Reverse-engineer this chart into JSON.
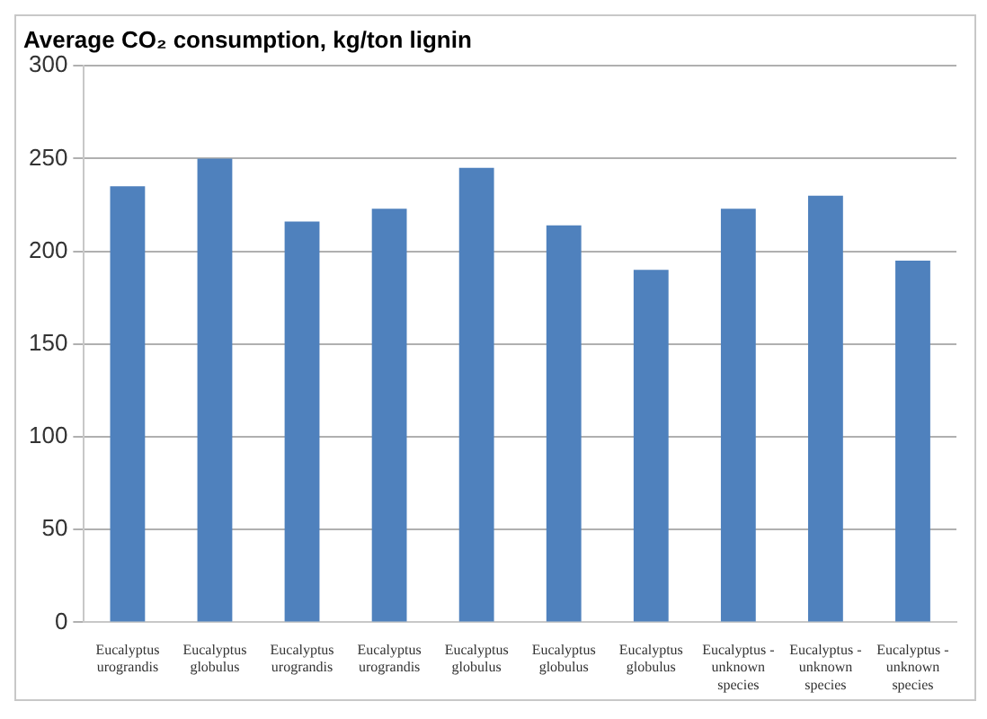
{
  "chart_data": {
    "type": "bar",
    "title": "Average CO₂ consumption, kg/ton lignin",
    "categories": [
      "Eucalyptus urograndis",
      "Eucalyptus globulus",
      "Eucalyptus urograndis",
      "Eucalyptus urograndis",
      "Eucalyptus globulus",
      "Eucalyptus globulus",
      "Eucalyptus globulus",
      "Eucalyptus - unknown species",
      "Eucalyptus - unknown species",
      "Eucalyptus - unknown species"
    ],
    "values": [
      235,
      250,
      216,
      223,
      245,
      214,
      190,
      223,
      230,
      195
    ],
    "color": "#4f81bd",
    "ylim": [
      0,
      300
    ],
    "yticks": [
      0,
      50,
      100,
      150,
      200,
      250,
      300
    ],
    "grid": "y",
    "legend": false
  }
}
